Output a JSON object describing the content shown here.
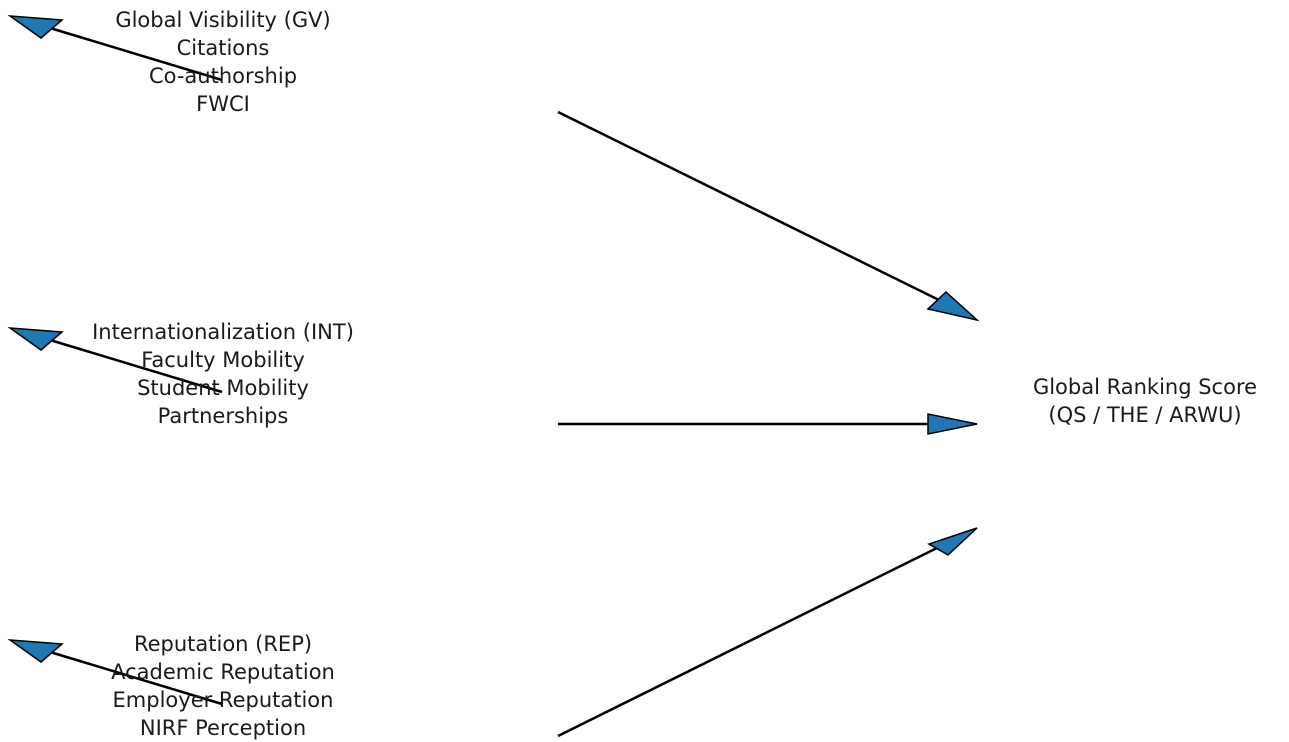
{
  "nodes": {
    "gv": {
      "title": "Global Visibility (GV)",
      "items": [
        "Citations",
        "Co-authorship",
        "FWCI"
      ]
    },
    "int": {
      "title": "Internationalization (INT)",
      "items": [
        "Faculty Mobility",
        "Student Mobility",
        "Partnerships"
      ]
    },
    "rep": {
      "title": "Reputation (REP)",
      "items": [
        "Academic Reputation",
        "Employer Reputation",
        "NIRF Perception"
      ]
    },
    "target": {
      "title": "Global Ranking Score",
      "subtitle": "(QS / THE / ARWU)"
    }
  },
  "colors": {
    "arrow_fill": "#1f77b4",
    "arrow_line": "#000000"
  }
}
